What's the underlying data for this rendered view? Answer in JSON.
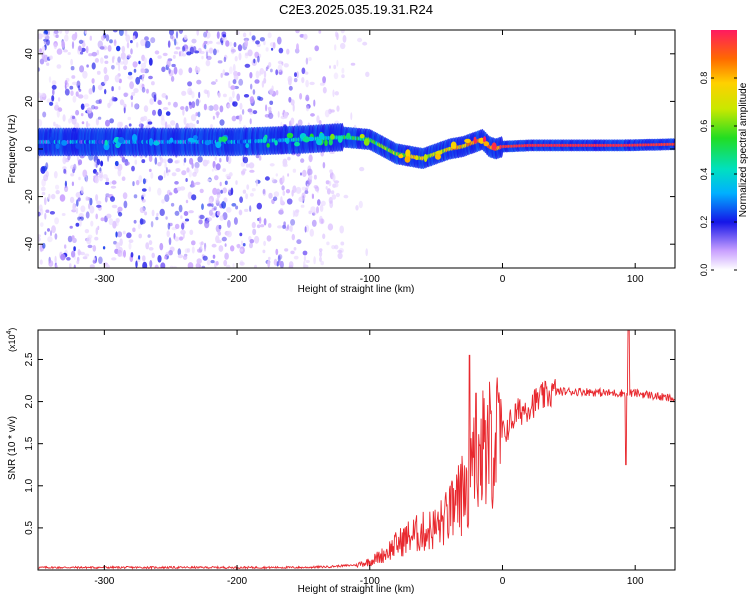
{
  "figure_title": "C2E3.2025.035.19.31.R24",
  "chart_data": [
    {
      "type": "heatmap",
      "title": "",
      "xlabel": "Height of straight line (km)",
      "ylabel": "Frequency (Hz)",
      "xlim": [
        -350,
        130
      ],
      "ylim": [
        -50,
        50
      ],
      "x_ticks": [
        -300,
        -200,
        -100,
        0,
        100
      ],
      "y_ticks": [
        -40,
        -20,
        0,
        20,
        40
      ],
      "colorbar": {
        "label": "Normalized spectral amplitude",
        "range": [
          0,
          1
        ],
        "ticks": [
          0.0,
          0.2,
          0.4,
          0.6,
          0.8
        ],
        "tick_labels": [
          "0.0",
          "0.2",
          "0.4",
          "0.6",
          "0.8"
        ]
      },
      "ridge": {
        "x": [
          -350,
          -300,
          -250,
          -200,
          -150,
          -120,
          -100,
          -90,
          -80,
          -70,
          -60,
          -50,
          -40,
          -30,
          -20,
          -15,
          -10,
          -5,
          0,
          20,
          50,
          90,
          130
        ],
        "freq": [
          3,
          3,
          3,
          3,
          4,
          5,
          4,
          1,
          -2,
          -3,
          -4,
          -2,
          0,
          1,
          3,
          4,
          1,
          0,
          1,
          1.5,
          1.5,
          1.5,
          2
        ],
        "amplitude": [
          0.25,
          0.25,
          0.25,
          0.3,
          0.35,
          0.45,
          0.5,
          0.55,
          0.6,
          0.7,
          0.7,
          0.7,
          0.75,
          0.8,
          0.85,
          0.85,
          0.85,
          0.9,
          0.95,
          0.97,
          0.97,
          0.97,
          0.95
        ]
      },
      "noise_region_x": [
        -350,
        -120
      ]
    },
    {
      "type": "line",
      "title": "",
      "xlabel": "Height of straight line (km)",
      "ylabel": "SNR (10 * v/v)",
      "y_multiplier": "(x10^4)",
      "xlim": [
        -350,
        130
      ],
      "ylim": [
        0,
        2.85
      ],
      "x_ticks": [
        -300,
        -200,
        -100,
        0,
        100
      ],
      "y_ticks": [
        0.5,
        1.0,
        1.5,
        2.0,
        2.5
      ],
      "color": "#e8282e",
      "series": [
        {
          "x": [
            -350,
            -300,
            -250,
            -200,
            -150,
            -130,
            -110,
            -100,
            -90,
            -80,
            -70,
            -60,
            -50,
            -40,
            -30,
            -25,
            -20,
            -10,
            0,
            10,
            20,
            30,
            40,
            60,
            80,
            90,
            100,
            110,
            120,
            130
          ],
          "y": [
            0.03,
            0.03,
            0.03,
            0.03,
            0.03,
            0.04,
            0.06,
            0.1,
            0.18,
            0.3,
            0.4,
            0.45,
            0.5,
            0.65,
            0.9,
            1.15,
            1.3,
            1.5,
            1.6,
            1.85,
            1.95,
            2.05,
            2.12,
            2.12,
            2.1,
            2.1,
            2.1,
            2.08,
            2.05,
            2.03
          ]
        }
      ],
      "spikes": [
        {
          "x": -25,
          "y": 2.55
        },
        {
          "x": -20,
          "y": 2.1
        },
        {
          "x": 95,
          "y": 2.85
        },
        {
          "x": 93,
          "y": 1.25
        }
      ]
    }
  ]
}
